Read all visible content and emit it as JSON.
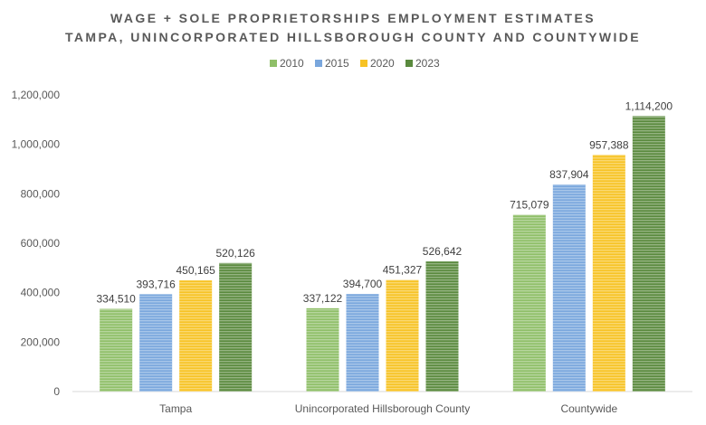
{
  "chart_data": {
    "type": "bar",
    "title_lines": [
      "WAGE + SOLE PROPRIETORSHIPS EMPLOYMENT ESTIMATES",
      "TAMPA, UNINCORPORATED HILLSBOROUGH COUNTY AND COUNTYWIDE"
    ],
    "categories": [
      "Tampa",
      "Unincorporated Hillsborough County",
      "Countywide"
    ],
    "series": [
      {
        "name": "2010",
        "color": "#8fbf68",
        "values": [
          334510,
          337122,
          715079
        ],
        "labels": [
          "334,510",
          "337,122",
          "715,079"
        ]
      },
      {
        "name": "2015",
        "color": "#7aa7dd",
        "values": [
          393716,
          394700,
          837904
        ],
        "labels": [
          "393,716",
          "394,700",
          "837,904"
        ]
      },
      {
        "name": "2020",
        "color": "#f7c325",
        "values": [
          450165,
          451327,
          957388
        ],
        "labels": [
          "450,165",
          "451,327",
          "957,388"
        ]
      },
      {
        "name": "2023",
        "color": "#5a8a3e",
        "values": [
          520126,
          526642,
          1114200
        ],
        "labels": [
          "520,126",
          "526,642",
          "1,114,200"
        ]
      }
    ],
    "ylim": [
      0,
      1200000
    ],
    "y_ticks": [
      {
        "value": 0,
        "label": "0"
      },
      {
        "value": 200000,
        "label": "200,000"
      },
      {
        "value": 400000,
        "label": "400,000"
      },
      {
        "value": 600000,
        "label": "600,000"
      },
      {
        "value": 800000,
        "label": "800,000"
      },
      {
        "value": 1000000,
        "label": "1,000,000"
      },
      {
        "value": 1200000,
        "label": "1,200,000"
      }
    ],
    "legend_position": "top",
    "grid": false,
    "xlabel": "",
    "ylabel": ""
  }
}
